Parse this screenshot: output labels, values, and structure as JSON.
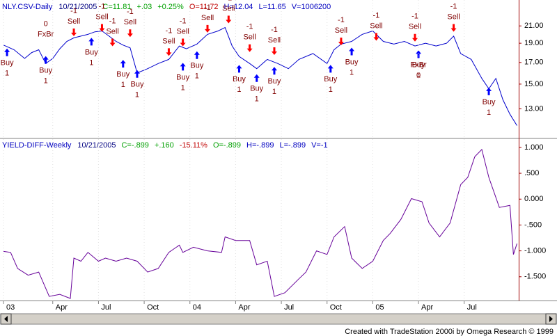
{
  "chart_data": [
    {
      "type": "line",
      "title": "NLY.CSV-Daily",
      "header": [
        {
          "text": "10/21/2005",
          "color": "#000080"
        },
        {
          "text": "C=11.81",
          "color": "#00a000"
        },
        {
          "text": "+.03",
          "color": "#00a000"
        },
        {
          "text": "+0.25%",
          "color": "#00a000"
        },
        {
          "text": "O=11.72",
          "color": "#c00000"
        },
        {
          "text": "H=12.04",
          "color": "#0000c0"
        },
        {
          "text": "L=11.65",
          "color": "#0000c0"
        },
        {
          "text": "V=1006200",
          "color": "#0000c0"
        }
      ],
      "title_color": "#0000c0",
      "log": true,
      "xlim": [
        -1,
        146.5
      ],
      "ylim": [
        11,
        24.2
      ],
      "yticks": [
        {
          "value": 21,
          "label": "21.00"
        },
        {
          "value": 19,
          "label": "19.00"
        },
        {
          "value": 17,
          "label": "17.00"
        },
        {
          "value": 15,
          "label": "15.00"
        },
        {
          "value": 13,
          "label": "13.00"
        }
      ],
      "series": [
        {
          "color": "#0000cc",
          "x": [
            0,
            3,
            6,
            8,
            10,
            12,
            14,
            16,
            18,
            20,
            22,
            24,
            26,
            28,
            30,
            32,
            34,
            36,
            38,
            41,
            44,
            47,
            50,
            52,
            55,
            58,
            61,
            63,
            65,
            67,
            70,
            72,
            75,
            78,
            81,
            84,
            88,
            92,
            94,
            96,
            99,
            102,
            105,
            108,
            111,
            114,
            117,
            120,
            123,
            126,
            128,
            130,
            133,
            136,
            138,
            140,
            142,
            144,
            146
          ],
          "values": [
            18.8,
            18.3,
            17.4,
            18.0,
            18.3,
            16.9,
            17.4,
            18.4,
            19.2,
            19.6,
            19.8,
            20.0,
            20.3,
            20.4,
            19.8,
            19.2,
            18.8,
            18.5,
            16.0,
            16.4,
            16.9,
            17.3,
            18.7,
            18.4,
            18.9,
            20.0,
            20.4,
            20.8,
            18.7,
            17.6,
            16.9,
            16.4,
            17.3,
            16.9,
            16.4,
            17.3,
            17.9,
            16.9,
            18.3,
            18.9,
            19.2,
            20.0,
            20.4,
            19.2,
            18.9,
            19.2,
            18.7,
            19.0,
            18.7,
            19.0,
            19.8,
            17.9,
            17.3,
            15.5,
            14.6,
            15.5,
            13.7,
            12.6,
            11.8
          ]
        }
      ],
      "signals": [
        {
          "side": "Buy",
          "qty": "1",
          "x": 1,
          "price": 18.8,
          "position": "below",
          "color": "#0000ff"
        },
        {
          "side": "Buy",
          "qty": "1",
          "x": 12,
          "price": 18.0,
          "position": "below",
          "color": "#0000ff"
        },
        {
          "side": "Buy",
          "qty": "1",
          "x": 25,
          "price": 20.0,
          "position": "below",
          "color": "#0000ff"
        },
        {
          "side": "Buy",
          "qty": "1",
          "x": 34,
          "price": 17.6,
          "position": "below",
          "color": "#0000ff"
        },
        {
          "side": "Buy",
          "qty": "1",
          "x": 38,
          "price": 16.6,
          "position": "below",
          "color": "#0000ff"
        },
        {
          "side": "Buy",
          "qty": "1",
          "x": 51,
          "price": 17.3,
          "position": "below",
          "color": "#0000ff"
        },
        {
          "side": "Buy",
          "qty": "1",
          "x": 55,
          "price": 18.5,
          "position": "below",
          "color": "#0000ff"
        },
        {
          "side": "Buy",
          "qty": "1",
          "x": 67,
          "price": 17.1,
          "position": "below",
          "color": "#0000ff"
        },
        {
          "side": "Buy",
          "qty": "1",
          "x": 72,
          "price": 16.2,
          "position": "below",
          "color": "#0000ff"
        },
        {
          "side": "Buy",
          "qty": "1",
          "x": 77,
          "price": 16.9,
          "position": "below",
          "color": "#0000ff"
        },
        {
          "side": "Buy",
          "qty": "1",
          "x": 93,
          "price": 17.1,
          "position": "below",
          "color": "#0000ff"
        },
        {
          "side": "Buy",
          "qty": "1",
          "x": 99,
          "price": 18.9,
          "position": "below",
          "color": "#0000ff"
        },
        {
          "side": "Buy",
          "qty": "1",
          "x": 118,
          "price": 18.6,
          "position": "below",
          "color": "#0000ff"
        },
        {
          "side": "Buy",
          "qty": "1",
          "x": 138,
          "price": 15.0,
          "position": "below",
          "color": "#0000ff"
        },
        {
          "side": "Sell",
          "qty": "-1",
          "x": 20,
          "price": 19.4,
          "position": "above",
          "color": "#ff0000"
        },
        {
          "side": "Sell",
          "qty": "-1",
          "x": 28,
          "price": 19.9,
          "position": "above",
          "color": "#ff0000"
        },
        {
          "side": "Sell",
          "qty": "-1",
          "x": 31,
          "price": 18.3,
          "position": "above",
          "color": "#ff0000"
        },
        {
          "side": "Sell",
          "qty": "-1",
          "x": 36,
          "price": 19.3,
          "position": "above",
          "color": "#ff0000"
        },
        {
          "side": "Sell",
          "qty": "-1",
          "x": 47,
          "price": 17.3,
          "position": "above",
          "color": "#ff0000"
        },
        {
          "side": "Sell",
          "qty": "-1",
          "x": 51,
          "price": 18.3,
          "position": "above",
          "color": "#ff0000"
        },
        {
          "side": "Sell",
          "qty": "-1",
          "x": 58,
          "price": 19.8,
          "position": "above",
          "color": "#ff0000"
        },
        {
          "side": "Sell",
          "qty": "-1",
          "x": 64,
          "price": 20.9,
          "position": "above",
          "color": "#ff0000"
        },
        {
          "side": "Sell",
          "qty": "-1",
          "x": 70,
          "price": 17.7,
          "position": "above",
          "color": "#ff0000"
        },
        {
          "side": "Sell",
          "qty": "-1",
          "x": 77,
          "price": 17.4,
          "position": "above",
          "color": "#ff0000"
        },
        {
          "side": "Sell",
          "qty": "-1",
          "x": 96,
          "price": 18.4,
          "position": "above",
          "color": "#ff0000"
        },
        {
          "side": "Sell",
          "qty": "-1",
          "x": 106,
          "price": 18.9,
          "position": "above",
          "color": "#ff0000"
        },
        {
          "side": "Sell",
          "qty": "-1",
          "x": 117,
          "price": 18.8,
          "position": "above",
          "color": "#ff0000"
        },
        {
          "side": "Sell",
          "qty": "-1",
          "x": 128,
          "price": 19.9,
          "position": "above",
          "color": "#ff0000"
        },
        {
          "side": "FxBr",
          "qty": "0",
          "x": 12,
          "price": 18.0,
          "position": "above",
          "color": "#800000"
        },
        {
          "side": "FxBr",
          "qty": "0",
          "x": 118,
          "price": 18.6,
          "position": "below",
          "color": "#800000"
        }
      ]
    },
    {
      "type": "line",
      "title": "YIELD-DIFF-Weekly",
      "header": [
        {
          "text": "10/21/2005",
          "color": "#000080"
        },
        {
          "text": "C=-.899",
          "color": "#00a000"
        },
        {
          "text": "+.160",
          "color": "#00a000"
        },
        {
          "text": "-15.11%",
          "color": "#c00000"
        },
        {
          "text": "O=-.899",
          "color": "#00a000"
        },
        {
          "text": "H=-.899",
          "color": "#0000c0"
        },
        {
          "text": "L=-.899",
          "color": "#0000c0"
        },
        {
          "text": "V=-1",
          "color": "#0000c0"
        }
      ],
      "title_color": "#0000c0",
      "xlim": [
        -1,
        146.5
      ],
      "ylim": [
        -1.96,
        1.16
      ],
      "yticks": [
        {
          "value": 1,
          "label": "1.000"
        },
        {
          "value": 0.5,
          "label": ".500"
        },
        {
          "value": 0,
          "label": "0.000"
        },
        {
          "value": -0.5,
          "label": "-.500"
        },
        {
          "value": -1,
          "label": "-1.000"
        },
        {
          "value": -1.5,
          "label": "-1.500"
        }
      ],
      "xticks": [
        {
          "value": 0,
          "label": "03"
        },
        {
          "value": 14,
          "label": "Apr"
        },
        {
          "value": 27,
          "label": "Jul"
        },
        {
          "value": 40,
          "label": "Oct"
        },
        {
          "value": 53,
          "label": "04"
        },
        {
          "value": 66,
          "label": "Apr"
        },
        {
          "value": 79,
          "label": "Jul"
        },
        {
          "value": 92,
          "label": "Oct"
        },
        {
          "value": 105,
          "label": "05"
        },
        {
          "value": 118,
          "label": "Apr"
        },
        {
          "value": 131,
          "label": "Jul"
        }
      ],
      "series": [
        {
          "color": "#660099",
          "x": [
            0,
            2,
            4,
            7,
            10,
            13,
            16,
            19,
            20,
            22,
            24,
            27,
            29,
            32,
            35,
            38,
            41,
            44,
            47,
            50,
            51,
            54,
            58,
            62,
            63,
            66,
            70,
            72,
            75,
            77,
            80,
            84,
            86,
            89,
            92,
            94,
            97,
            99,
            102,
            105,
            108,
            110,
            113,
            116,
            119,
            121,
            124,
            127,
            130,
            132,
            134,
            136,
            138,
            141,
            144,
            145,
            146
          ],
          "values": [
            -1.01,
            -1.03,
            -1.34,
            -1.47,
            -1.41,
            -1.88,
            -1.84,
            -1.92,
            -1.14,
            -1.2,
            -1.03,
            -1.2,
            -1.14,
            -1.2,
            -1.14,
            -1.2,
            -1.41,
            -1.34,
            -1.03,
            -0.89,
            -1.03,
            -0.93,
            -1.0,
            -1.03,
            -0.73,
            -0.8,
            -0.8,
            -1.27,
            -1.2,
            -1.88,
            -1.81,
            -1.54,
            -1.41,
            -1.0,
            -1.07,
            -0.73,
            -0.53,
            -1.14,
            -1.34,
            -1.2,
            -0.8,
            -0.66,
            -0.39,
            0.01,
            -0.05,
            -0.46,
            -0.73,
            -0.46,
            0.28,
            0.42,
            0.82,
            0.96,
            0.42,
            -0.16,
            -0.12,
            -1.07,
            -0.86
          ]
        }
      ]
    }
  ],
  "footer": "Created with TradeStation 2000i by Omega Research © 1999"
}
